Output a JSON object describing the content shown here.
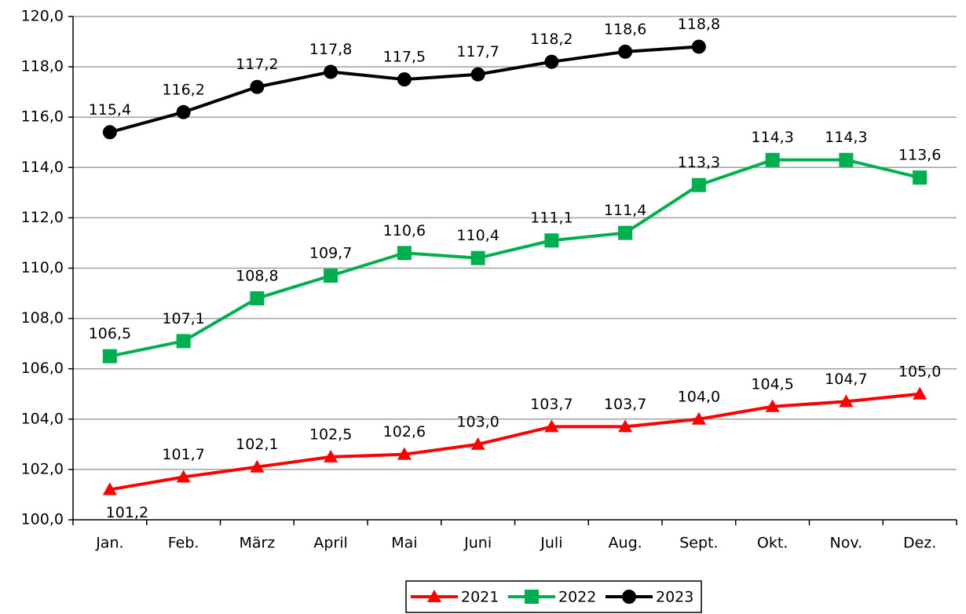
{
  "chart_data": {
    "type": "line",
    "categories": [
      "Jan.",
      "Feb.",
      "März",
      "April",
      "Mai",
      "Juni",
      "Juli",
      "Aug.",
      "Sept.",
      "Okt.",
      "Nov.",
      "Dez."
    ],
    "series": [
      {
        "name": "2021",
        "color": "#ff0000",
        "marker": "triangle",
        "values": [
          101.2,
          101.7,
          102.1,
          102.5,
          102.6,
          103.0,
          103.7,
          103.7,
          104.0,
          104.5,
          104.7,
          105.0
        ],
        "value_labels": [
          "101,2",
          "101,7",
          "102,1",
          "102,5",
          "102,6",
          "103,0",
          "103,7",
          "103,7",
          "104,0",
          "104,5",
          "104,7",
          "105,0"
        ]
      },
      {
        "name": "2022",
        "color": "#00b050",
        "marker": "square",
        "values": [
          106.5,
          107.1,
          108.8,
          109.7,
          110.6,
          110.4,
          111.1,
          111.4,
          113.3,
          114.3,
          114.3,
          113.6
        ],
        "value_labels": [
          "106,5",
          "107,1",
          "108,8",
          "109,7",
          "110,6",
          "110,4",
          "111,1",
          "111,4",
          "113,3",
          "114,3",
          "114,3",
          "113,6"
        ]
      },
      {
        "name": "2023",
        "color": "#000000",
        "marker": "circle",
        "values": [
          115.4,
          116.2,
          117.2,
          117.8,
          117.5,
          117.7,
          118.2,
          118.6,
          118.8,
          null,
          null,
          null
        ],
        "value_labels": [
          "115,4",
          "116,2",
          "117,2",
          "117,8",
          "117,5",
          "117,7",
          "118,2",
          "118,6",
          "118,8",
          null,
          null,
          null
        ]
      }
    ],
    "ylim": [
      100,
      120
    ],
    "yticks": [
      {
        "value": 100,
        "label": "100,0"
      },
      {
        "value": 102,
        "label": "102,0"
      },
      {
        "value": 104,
        "label": "104,0"
      },
      {
        "value": 106,
        "label": "106,0"
      },
      {
        "value": 108,
        "label": "108,0"
      },
      {
        "value": 110,
        "label": "110,0"
      },
      {
        "value": 112,
        "label": "112,0"
      },
      {
        "value": 114,
        "label": "114,0"
      },
      {
        "value": 116,
        "label": "116,0"
      },
      {
        "value": 118,
        "label": "118,0"
      },
      {
        "value": 120,
        "label": "120,0"
      }
    ],
    "grid": true,
    "legend": "bottom"
  }
}
